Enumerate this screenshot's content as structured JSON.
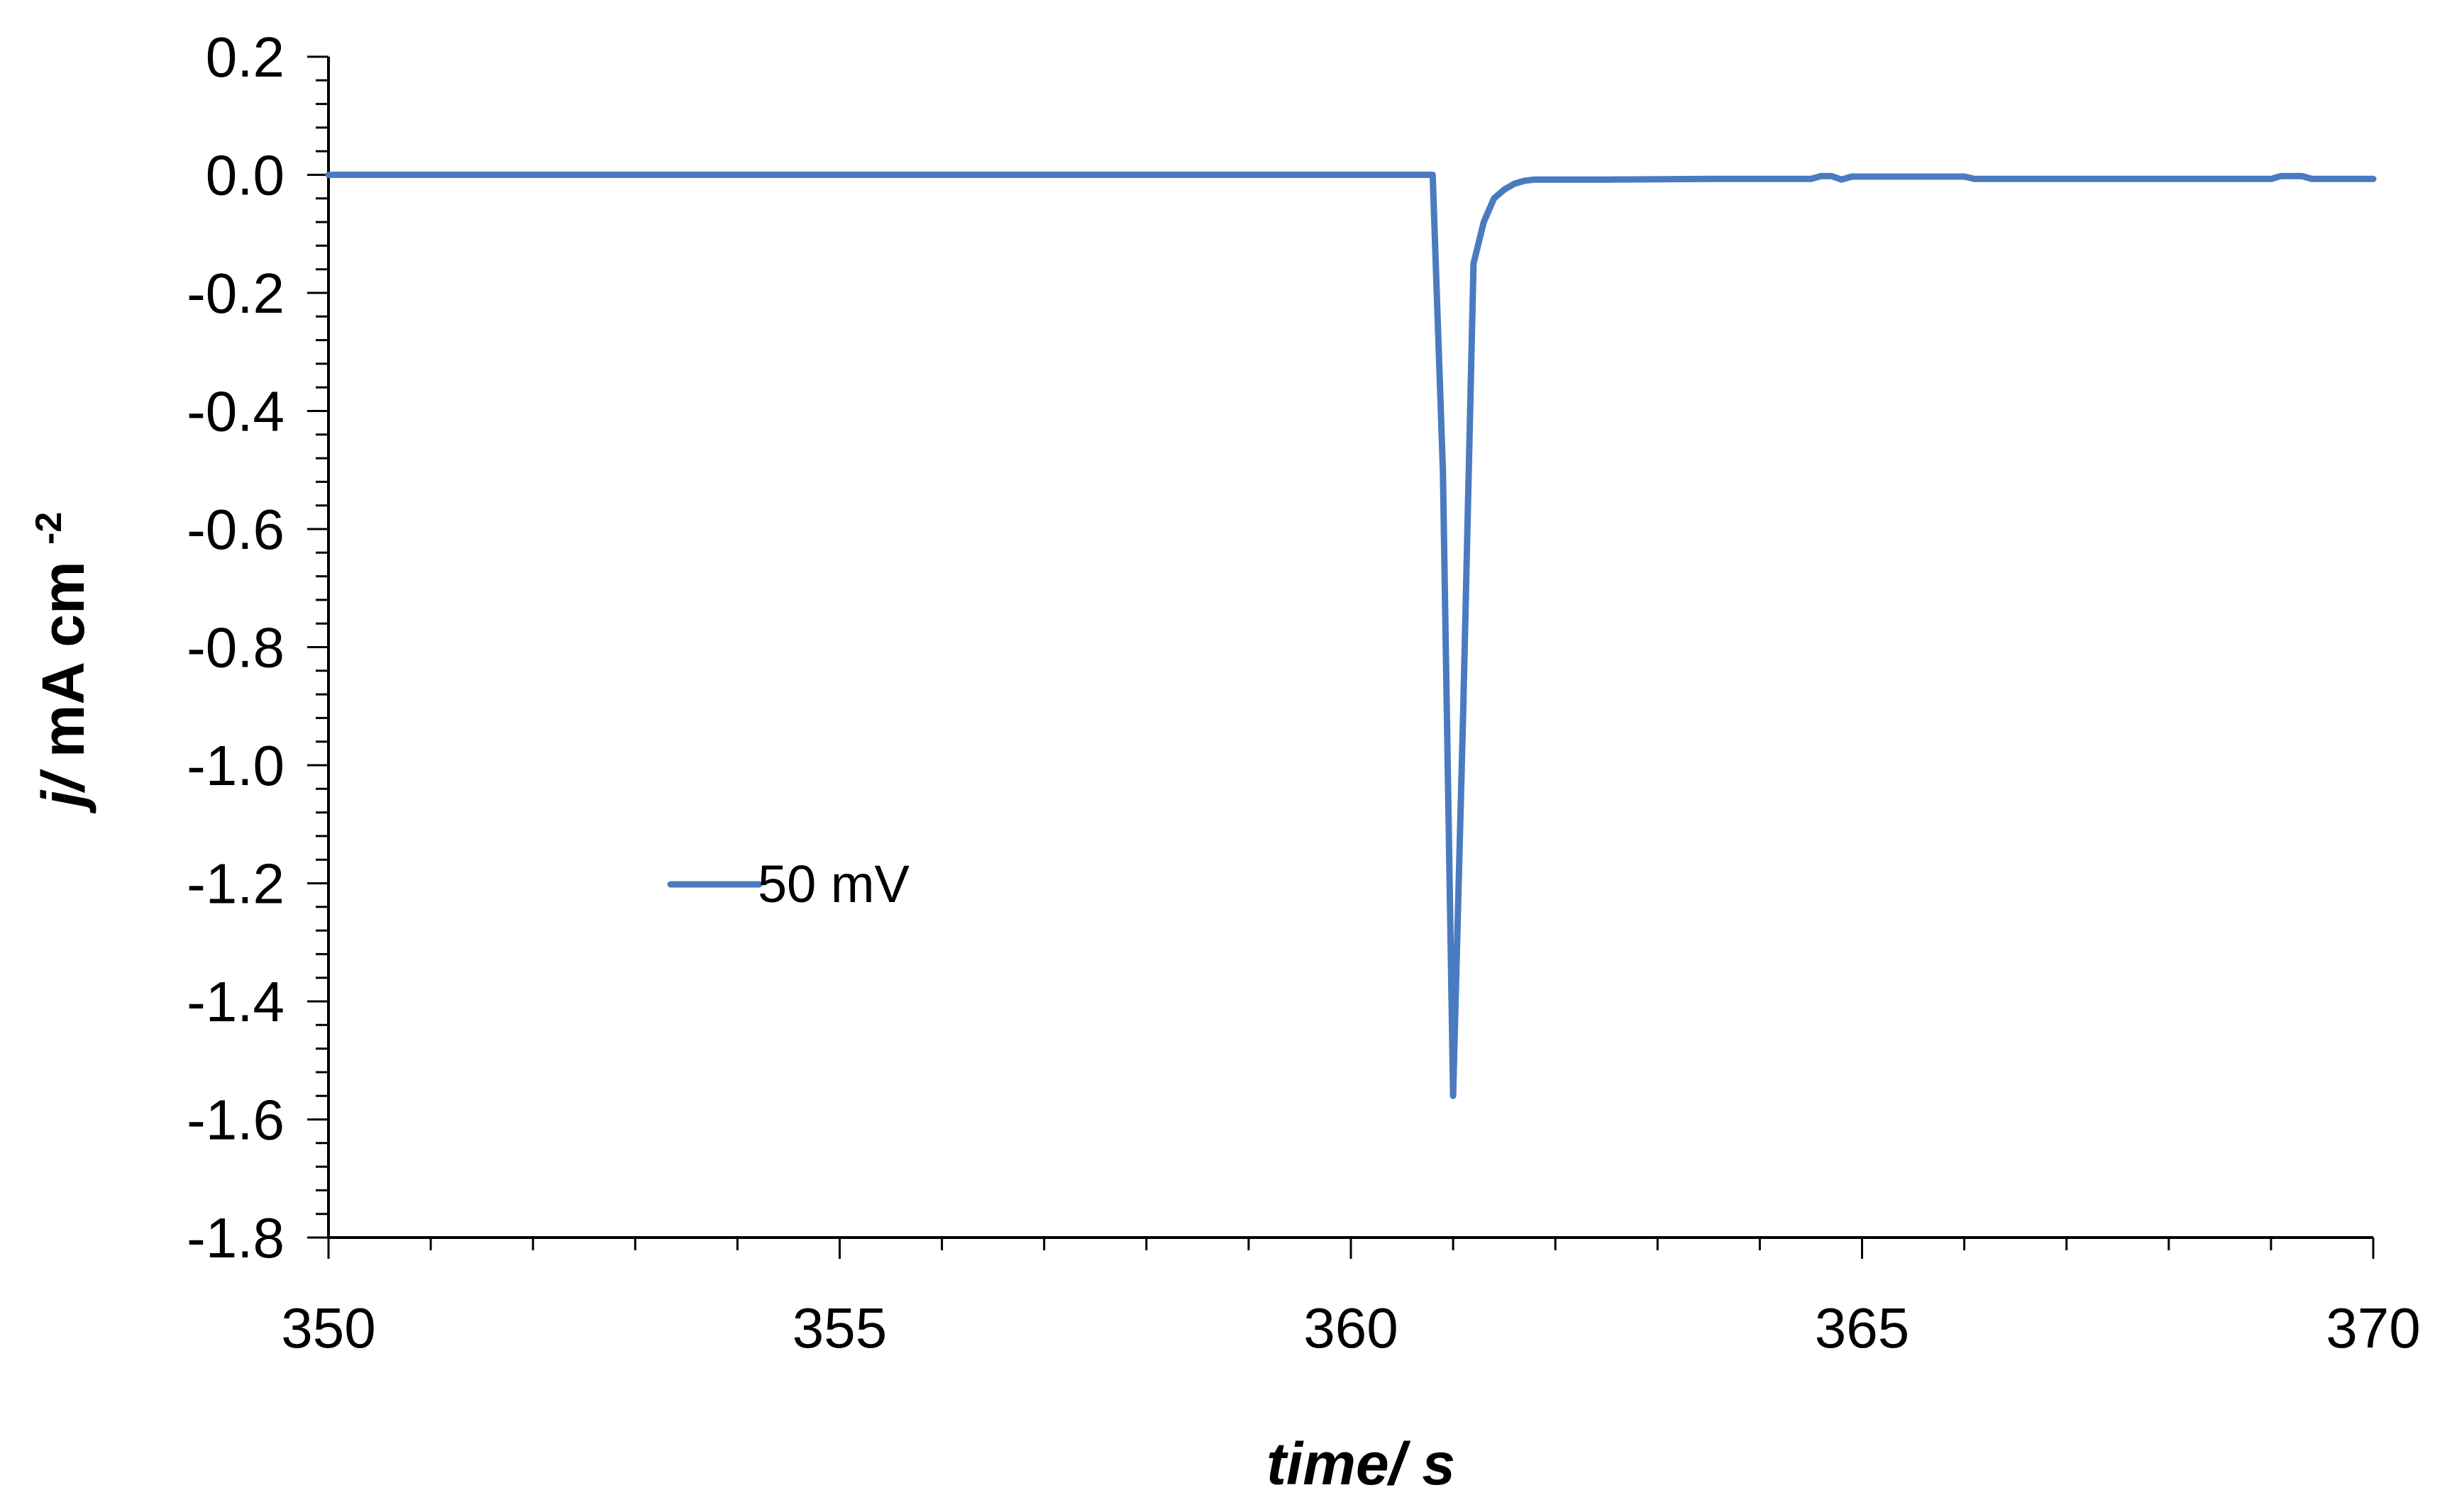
{
  "chart_data": {
    "type": "line",
    "xlabel": "time/ s",
    "ylabel": {
      "italic": "j/",
      "main": "mA cm",
      "superscript": "-2"
    },
    "xlim": [
      350,
      370
    ],
    "ylim": [
      -1.8,
      0.2
    ],
    "x_major_ticks": [
      350,
      355,
      360,
      365,
      370
    ],
    "x_tick_labels": [
      "350",
      "355",
      "360",
      "365",
      "370"
    ],
    "x_minor_step": 1,
    "y_major_ticks": [
      0.2,
      0.0,
      -0.2,
      -0.4,
      -0.6,
      -0.8,
      -1.0,
      -1.2,
      -1.4,
      -1.6,
      -1.8
    ],
    "y_tick_labels": [
      "0.2",
      "0.0",
      "-0.2",
      "-0.4",
      "-0.6",
      "-0.8",
      "-1.0",
      "-1.2",
      "-1.4",
      "-1.6",
      "-1.8"
    ],
    "y_minor_step": 0.04,
    "grid": false,
    "legend": {
      "position": "center-left"
    },
    "series": [
      {
        "name": "50 mV",
        "color": "#4a7bc0",
        "x": [
          350,
          360.8,
          360.9,
          361.0,
          361.1,
          361.2,
          361.3,
          361.4,
          361.5,
          361.6,
          361.7,
          361.8,
          362.5,
          363.5,
          364.5,
          364.6,
          364.7,
          364.8,
          364.9,
          365.0,
          366.0,
          366.1,
          367.0,
          368.0,
          369.0,
          369.1,
          369.3,
          369.4,
          370
        ],
        "y": [
          0.0,
          0.0,
          -0.5,
          -1.56,
          -0.9,
          -0.15,
          -0.08,
          -0.04,
          -0.025,
          -0.015,
          -0.01,
          -0.008,
          -0.008,
          -0.007,
          -0.007,
          -0.002,
          -0.002,
          -0.008,
          -0.003,
          -0.003,
          -0.003,
          -0.007,
          -0.007,
          -0.007,
          -0.007,
          -0.002,
          -0.002,
          -0.007,
          -0.007
        ]
      }
    ]
  }
}
